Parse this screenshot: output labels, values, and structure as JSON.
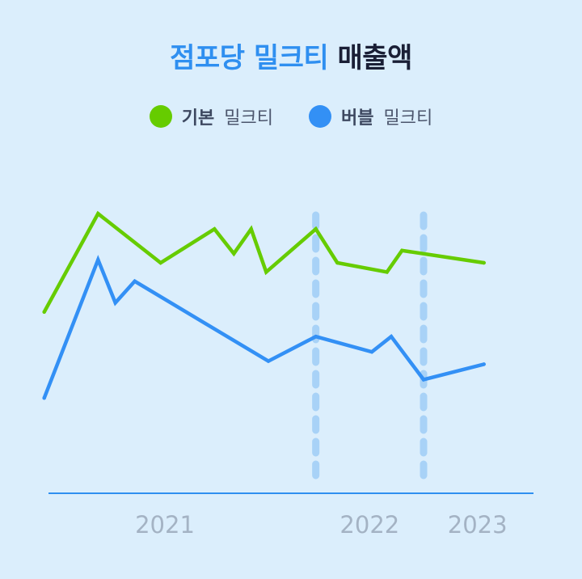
{
  "title": {
    "highlight": "점포당 밀크티",
    "rest": "매출액"
  },
  "legend": [
    {
      "strong": "기본",
      "rest": "밀크티",
      "color": "#66cc00"
    },
    {
      "strong": "버블",
      "rest": "밀크티",
      "color": "#3390f5"
    }
  ],
  "colors": {
    "background": "#dbeefc",
    "axis": "#2f8ff0",
    "divider": "#a8d2f7",
    "tick_label": "#a4b3c4"
  },
  "chart_data": {
    "type": "line",
    "title": "점포당 밀크티 매출액",
    "x_ticks": [
      {
        "label": "2021",
        "x": 2021.6
      },
      {
        "label": "2022",
        "x": 2022.55
      },
      {
        "label": "2023",
        "x": 2023.05
      }
    ],
    "year_dividers": [
      2022.3,
      2022.8
    ],
    "xlim": [
      2021.0,
      2023.4
    ],
    "ylim": [
      0,
      100
    ],
    "series": [
      {
        "name": "기본 밀크티",
        "color": "#66cc00",
        "x": [
          2021.04,
          2021.29,
          2021.58,
          2021.83,
          2021.92,
          2022.0,
          2022.07,
          2022.3,
          2022.4,
          2022.63,
          2022.7,
          2023.08
        ],
        "values": [
          59,
          91,
          75,
          86,
          78,
          86,
          72,
          86,
          75,
          72,
          79,
          75
        ]
      },
      {
        "name": "버블 밀크티",
        "color": "#3390f5",
        "x": [
          2021.04,
          2021.29,
          2021.37,
          2021.46,
          2022.08,
          2022.3,
          2022.56,
          2022.65,
          2022.8,
          2023.08
        ],
        "values": [
          31,
          76,
          62,
          69,
          43,
          51,
          46,
          51,
          37,
          42
        ]
      }
    ]
  }
}
